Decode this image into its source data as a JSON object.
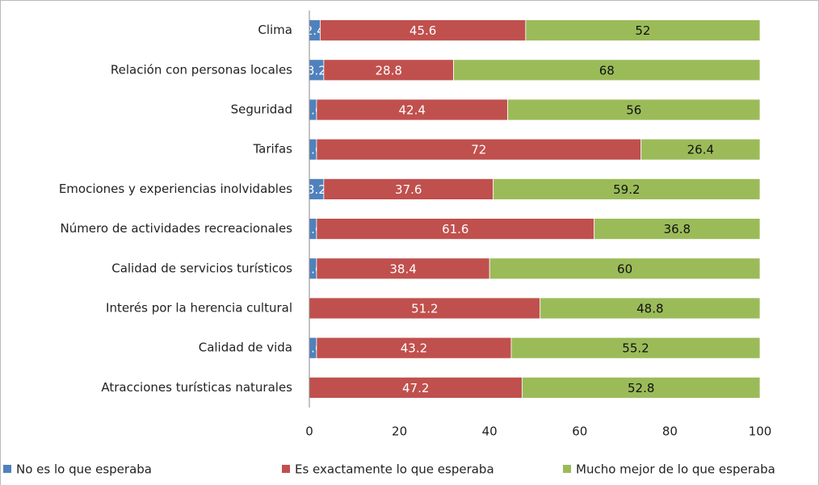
{
  "chart_data": {
    "type": "stacked-barh",
    "categories": [
      "Clima",
      "Relación con personas locales",
      "Seguridad",
      "Tarifas",
      "Emociones y experiencias inolvidables",
      "Número de actividades recreacionales",
      "Calidad de servicios turísticos",
      "Interés por la herencia cultural",
      "Calidad de vida",
      "Atracciones turísticas naturales"
    ],
    "series": [
      {
        "name": "No es lo que esperaba",
        "color": "#4f81bd",
        "values": [
          2.4,
          3.2,
          1.6,
          1.6,
          3.2,
          1.6,
          1.6,
          0,
          1.6,
          0
        ]
      },
      {
        "name": "Es exactamente lo que esperaba",
        "color": "#c0504d",
        "values": [
          45.6,
          28.8,
          42.4,
          72,
          37.6,
          61.6,
          38.4,
          51.2,
          43.2,
          47.2
        ]
      },
      {
        "name": "Mucho mejor de lo que esperaba",
        "color": "#9bbb59",
        "values": [
          52,
          68,
          56,
          26.4,
          59.2,
          36.8,
          60,
          48.8,
          55.2,
          52.8
        ]
      }
    ],
    "xlim": [
      0,
      100
    ],
    "xticks": [
      0,
      20,
      40,
      60,
      80,
      100
    ],
    "legend": "bottom"
  }
}
